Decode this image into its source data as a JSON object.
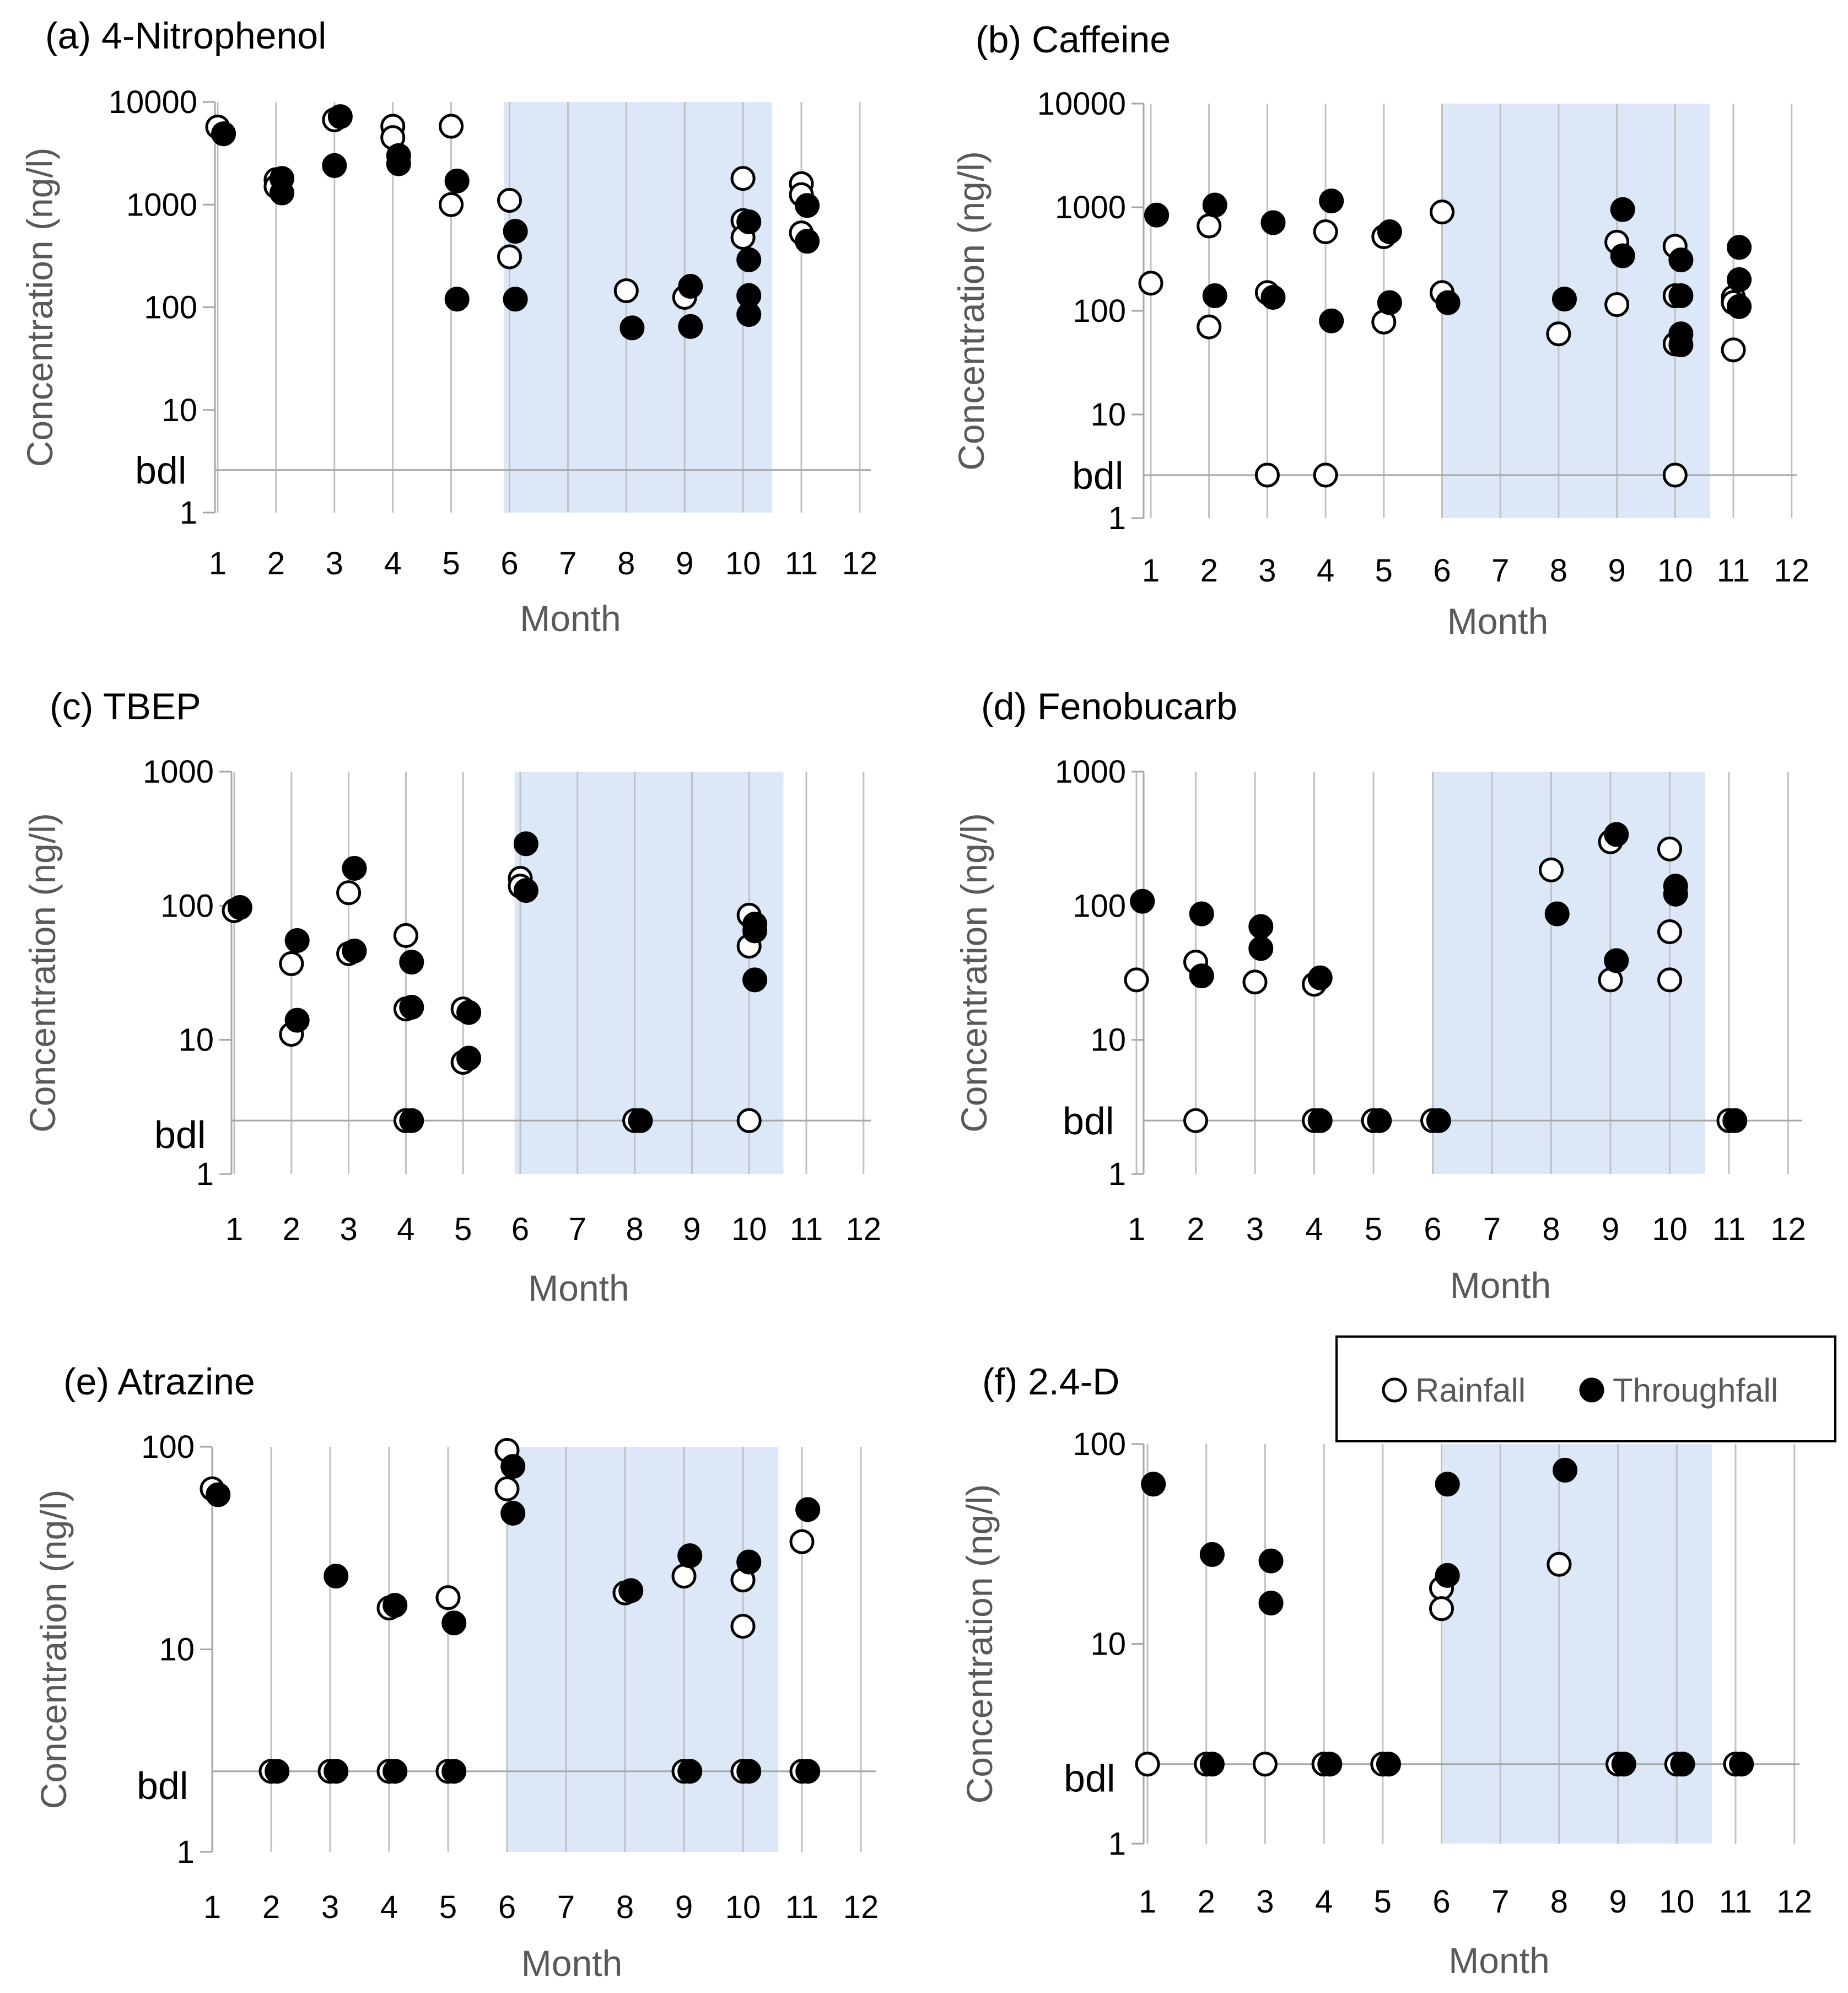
{
  "figure": {
    "legend": {
      "rainfall_label": "Rainfall",
      "throughfall_label": "Throughfall"
    }
  },
  "style": {
    "shade_color": "#dce8f7",
    "grid_color": "#c0c0c0",
    "axis_color": "#a6a6a6",
    "marker_color": "#000000",
    "open_fill": "#ffffff"
  },
  "chart_data": [
    {
      "id": "a",
      "type": "scatter",
      "title": "(a) 4-Nitrophenol",
      "xlabel": "Month",
      "ylabel": "Concentration (ng/l)",
      "yscale": "log",
      "ylim": [
        1,
        10000
      ],
      "yticks": [
        {
          "value": 10000,
          "label": "10000"
        },
        {
          "value": 1000,
          "label": "1000"
        },
        {
          "value": 100,
          "label": "100"
        },
        {
          "value": 10,
          "label": "10"
        },
        {
          "value": 1,
          "label": "1"
        }
      ],
      "xticks": [
        "1",
        "2",
        "3",
        "4",
        "5",
        "6",
        "7",
        "8",
        "9",
        "10",
        "11",
        "12"
      ],
      "bdl_label": "bdl",
      "bdl_value": 2.6,
      "shaded_range": [
        5.9,
        10.5
      ],
      "series": [
        {
          "name": "Rainfall",
          "points": [
            [
              1.0,
              5700
            ],
            [
              2.0,
              1750
            ],
            [
              2.0,
              1500
            ],
            [
              3.0,
              6700
            ],
            [
              4.0,
              5800
            ],
            [
              4.0,
              4500
            ],
            [
              5.0,
              5800
            ],
            [
              5.0,
              1000
            ],
            [
              6.0,
              1100
            ],
            [
              6.0,
              310
            ],
            [
              8.0,
              145
            ],
            [
              9.0,
              125
            ],
            [
              10.0,
              1800
            ],
            [
              10.0,
              700
            ],
            [
              10.0,
              480
            ],
            [
              11.0,
              1600
            ],
            [
              11.0,
              1250
            ],
            [
              11.0,
              530
            ]
          ]
        },
        {
          "name": "Throughfall",
          "points": [
            [
              1.1,
              4900
            ],
            [
              2.1,
              1800
            ],
            [
              2.1,
              1300
            ],
            [
              3.1,
              7200
            ],
            [
              3.0,
              2400
            ],
            [
              4.1,
              3000
            ],
            [
              4.1,
              2500
            ],
            [
              5.1,
              1700
            ],
            [
              5.1,
              120
            ],
            [
              6.1,
              550
            ],
            [
              6.1,
              120
            ],
            [
              8.1,
              63
            ],
            [
              9.1,
              160
            ],
            [
              9.1,
              65
            ],
            [
              10.1,
              680
            ],
            [
              10.1,
              290
            ],
            [
              10.1,
              130
            ],
            [
              10.1,
              85
            ],
            [
              11.1,
              980
            ],
            [
              11.1,
              440
            ]
          ]
        }
      ]
    },
    {
      "id": "b",
      "type": "scatter",
      "title": "(b) Caffeine",
      "xlabel": "Month",
      "ylabel": "Concentration (ng/l)",
      "yscale": "log",
      "ylim": [
        1,
        10000
      ],
      "yticks": [
        {
          "value": 10000,
          "label": "10000"
        },
        {
          "value": 1000,
          "label": "1000"
        },
        {
          "value": 100,
          "label": "100"
        },
        {
          "value": 10,
          "label": "10"
        },
        {
          "value": 1,
          "label": "1"
        }
      ],
      "xticks": [
        "1",
        "2",
        "3",
        "4",
        "5",
        "6",
        "7",
        "8",
        "9",
        "10",
        "11",
        "12"
      ],
      "bdl_label": "bdl",
      "bdl_value": 2.6,
      "shaded_range": [
        6.0,
        10.6
      ],
      "series": [
        {
          "name": "Rainfall",
          "points": [
            [
              1.0,
              185
            ],
            [
              2.0,
              660
            ],
            [
              2.0,
              70
            ],
            [
              3.0,
              150
            ],
            [
              3.0,
              2.6
            ],
            [
              4.0,
              580
            ],
            [
              4.0,
              2.6
            ],
            [
              5.0,
              520
            ],
            [
              5.0,
              78
            ],
            [
              6.0,
              900
            ],
            [
              6.0,
              150
            ],
            [
              8.0,
              60
            ],
            [
              9.0,
              460
            ],
            [
              9.0,
              115
            ],
            [
              10.0,
              420
            ],
            [
              10.0,
              140
            ],
            [
              10.0,
              48
            ],
            [
              10.0,
              2.6
            ],
            [
              11.0,
              135
            ],
            [
              11.0,
              120
            ],
            [
              11.0,
              42
            ]
          ]
        },
        {
          "name": "Throughfall",
          "points": [
            [
              1.1,
              840
            ],
            [
              2.1,
              1050
            ],
            [
              2.1,
              140
            ],
            [
              3.1,
              710
            ],
            [
              3.1,
              135
            ],
            [
              4.1,
              1150
            ],
            [
              4.1,
              80
            ],
            [
              5.1,
              580
            ],
            [
              5.1,
              120
            ],
            [
              6.1,
              120
            ],
            [
              8.1,
              130
            ],
            [
              9.1,
              950
            ],
            [
              9.1,
              340
            ],
            [
              10.1,
              310
            ],
            [
              10.1,
              140
            ],
            [
              10.1,
              60
            ],
            [
              10.1,
              47
            ],
            [
              11.1,
              410
            ],
            [
              11.1,
              200
            ],
            [
              11.1,
              110
            ]
          ]
        }
      ]
    },
    {
      "id": "c",
      "type": "scatter",
      "title": "(c) TBEP",
      "xlabel": "Month",
      "ylabel": "Concentration (ng/l)",
      "yscale": "log",
      "ylim": [
        1,
        1000
      ],
      "yticks": [
        {
          "value": 1000,
          "label": "1000"
        },
        {
          "value": 100,
          "label": "100"
        },
        {
          "value": 10,
          "label": "10"
        },
        {
          "value": 1,
          "label": "1"
        }
      ],
      "xticks": [
        "1",
        "2",
        "3",
        "4",
        "5",
        "6",
        "7",
        "8",
        "9",
        "10",
        "11",
        "12"
      ],
      "bdl_label": "bdl",
      "bdl_value": 2.5,
      "shaded_range": [
        5.9,
        10.6
      ],
      "series": [
        {
          "name": "Rainfall",
          "points": [
            [
              1.0,
              92
            ],
            [
              2.0,
              37
            ],
            [
              2.0,
              11
            ],
            [
              3.0,
              125
            ],
            [
              3.0,
              44
            ],
            [
              4.0,
              60
            ],
            [
              4.0,
              17
            ],
            [
              4.0,
              2.5
            ],
            [
              5.0,
              17
            ],
            [
              5.0,
              6.8
            ],
            [
              6.0,
              160
            ],
            [
              6.0,
              140
            ],
            [
              8.0,
              2.5
            ],
            [
              10.0,
              85
            ],
            [
              10.0,
              50
            ],
            [
              10.0,
              2.5
            ]
          ]
        },
        {
          "name": "Throughfall",
          "points": [
            [
              1.1,
              97
            ],
            [
              2.1,
              55
            ],
            [
              2.1,
              14
            ],
            [
              3.1,
              190
            ],
            [
              3.1,
              46
            ],
            [
              4.1,
              38
            ],
            [
              4.1,
              17.5
            ],
            [
              4.1,
              2.5
            ],
            [
              5.1,
              16
            ],
            [
              5.1,
              7.3
            ],
            [
              6.1,
              290
            ],
            [
              6.1,
              130
            ],
            [
              8.1,
              2.5
            ],
            [
              10.1,
              73
            ],
            [
              10.1,
              65
            ],
            [
              10.1,
              28
            ]
          ]
        }
      ]
    },
    {
      "id": "d",
      "type": "scatter",
      "title": "(d) Fenobucarb",
      "xlabel": "Month",
      "ylabel": "Concentration (ng/l)",
      "yscale": "log",
      "ylim": [
        1,
        1000
      ],
      "yticks": [
        {
          "value": 1000,
          "label": "1000"
        },
        {
          "value": 100,
          "label": "100"
        },
        {
          "value": 10,
          "label": "10"
        },
        {
          "value": 1,
          "label": "1"
        }
      ],
      "xticks": [
        "1",
        "2",
        "3",
        "4",
        "5",
        "6",
        "7",
        "8",
        "9",
        "10",
        "11",
        "12"
      ],
      "bdl_label": "bdl",
      "bdl_value": 2.5,
      "shaded_range": [
        6.0,
        10.6
      ],
      "series": [
        {
          "name": "Rainfall",
          "points": [
            [
              1.0,
              28
            ],
            [
              2.0,
              38
            ],
            [
              2.0,
              2.5
            ],
            [
              3.0,
              27
            ],
            [
              4.0,
              26
            ],
            [
              4.0,
              2.5
            ],
            [
              5.0,
              2.5
            ],
            [
              6.0,
              2.5
            ],
            [
              8.0,
              185
            ],
            [
              9.0,
              300
            ],
            [
              9.0,
              28
            ],
            [
              10.0,
              265
            ],
            [
              10.0,
              64
            ],
            [
              10.0,
              28
            ],
            [
              11.0,
              2.5
            ]
          ]
        },
        {
          "name": "Throughfall",
          "points": [
            [
              1.1,
              108
            ],
            [
              2.1,
              87
            ],
            [
              2.1,
              30
            ],
            [
              3.1,
              70
            ],
            [
              3.1,
              48
            ],
            [
              4.1,
              29
            ],
            [
              4.1,
              2.5
            ],
            [
              5.1,
              2.5
            ],
            [
              6.1,
              2.5
            ],
            [
              8.1,
              87
            ],
            [
              9.1,
              340
            ],
            [
              9.1,
              39
            ],
            [
              10.1,
              140
            ],
            [
              10.1,
              122
            ],
            [
              11.1,
              2.5
            ]
          ]
        }
      ]
    },
    {
      "id": "e",
      "type": "scatter",
      "title": "(e) Atrazine",
      "xlabel": "Month",
      "ylabel": "Concentration (ng/l)",
      "yscale": "log",
      "ylim": [
        1,
        100
      ],
      "yticks": [
        {
          "value": 100,
          "label": "100"
        },
        {
          "value": 10,
          "label": "10"
        },
        {
          "value": 1,
          "label": "1"
        }
      ],
      "xticks": [
        "1",
        "2",
        "3",
        "4",
        "5",
        "6",
        "7",
        "8",
        "9",
        "10",
        "11",
        "12"
      ],
      "bdl_label": "bdl",
      "bdl_value": 2.5,
      "shaded_range": [
        6.0,
        10.6
      ],
      "series": [
        {
          "name": "Rainfall",
          "points": [
            [
              1.0,
              62
            ],
            [
              2.0,
              2.5
            ],
            [
              3.0,
              2.5
            ],
            [
              4.0,
              16
            ],
            [
              4.0,
              2.5
            ],
            [
              5.0,
              18
            ],
            [
              5.0,
              2.5
            ],
            [
              6.0,
              96
            ],
            [
              6.0,
              62
            ],
            [
              8.0,
              19
            ],
            [
              9.0,
              23
            ],
            [
              9.0,
              2.5
            ],
            [
              10.0,
              22
            ],
            [
              10.0,
              13
            ],
            [
              10.0,
              2.5
            ],
            [
              11.0,
              34
            ],
            [
              11.0,
              2.5
            ]
          ]
        },
        {
          "name": "Throughfall",
          "points": [
            [
              1.1,
              58
            ],
            [
              2.1,
              2.5
            ],
            [
              3.1,
              23
            ],
            [
              3.1,
              2.5
            ],
            [
              4.1,
              16.5
            ],
            [
              4.1,
              2.5
            ],
            [
              5.1,
              13.5
            ],
            [
              5.1,
              2.5
            ],
            [
              6.1,
              80
            ],
            [
              6.1,
              47
            ],
            [
              8.1,
              19.5
            ],
            [
              9.1,
              29
            ],
            [
              9.1,
              2.5
            ],
            [
              10.1,
              27
            ],
            [
              10.1,
              2.5
            ],
            [
              11.1,
              49
            ],
            [
              11.1,
              2.5
            ]
          ]
        }
      ]
    },
    {
      "id": "f",
      "type": "scatter",
      "title": "(f) 2.4-D",
      "xlabel": "Month",
      "ylabel": "Concentration (ng/l)",
      "yscale": "log",
      "ylim": [
        1,
        100
      ],
      "yticks": [
        {
          "value": 100,
          "label": "100"
        },
        {
          "value": 10,
          "label": "10"
        },
        {
          "value": 1,
          "label": "1"
        }
      ],
      "xticks": [
        "1",
        "2",
        "3",
        "4",
        "5",
        "6",
        "7",
        "8",
        "9",
        "10",
        "11",
        "12"
      ],
      "bdl_label": "bdl",
      "bdl_value": 2.5,
      "shaded_range": [
        6.0,
        10.6
      ],
      "series": [
        {
          "name": "Rainfall",
          "points": [
            [
              1.0,
              2.5
            ],
            [
              2.0,
              2.5
            ],
            [
              3.0,
              2.5
            ],
            [
              4.0,
              2.5
            ],
            [
              5.0,
              2.5
            ],
            [
              6.0,
              19
            ],
            [
              6.0,
              15
            ],
            [
              8.0,
              25
            ],
            [
              9.0,
              2.5
            ],
            [
              10.0,
              2.5
            ],
            [
              11.0,
              2.5
            ]
          ]
        },
        {
          "name": "Throughfall",
          "points": [
            [
              1.1,
              63
            ],
            [
              2.1,
              28
            ],
            [
              2.1,
              2.5
            ],
            [
              3.1,
              26
            ],
            [
              3.1,
              16
            ],
            [
              4.1,
              2.5
            ],
            [
              5.1,
              2.5
            ],
            [
              6.1,
              63
            ],
            [
              6.1,
              22
            ],
            [
              8.1,
              74
            ],
            [
              9.1,
              2.5
            ],
            [
              10.1,
              2.5
            ],
            [
              11.1,
              2.5
            ]
          ]
        }
      ]
    }
  ]
}
